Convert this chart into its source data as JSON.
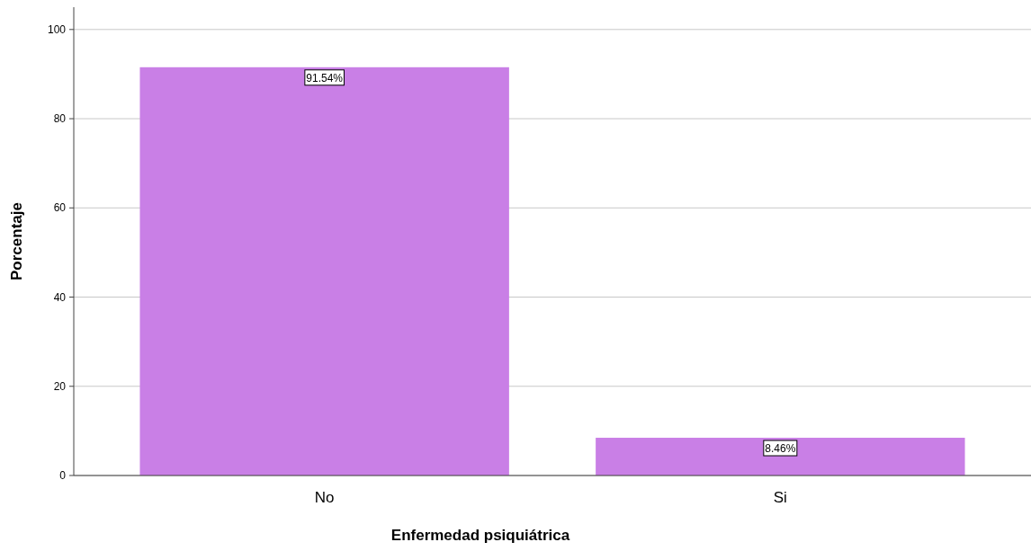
{
  "chart_data": {
    "type": "bar",
    "xlabel": "Enfermedad psiquiátrica",
    "ylabel": "Porcentaje",
    "categories": [
      "No",
      "Si"
    ],
    "values": [
      91.54,
      8.46
    ],
    "value_labels": [
      "91.54%",
      "8.46%"
    ],
    "color": "#c97fe6",
    "ylim": [
      0,
      105
    ],
    "yticks": [
      0,
      20,
      40,
      60,
      80,
      100
    ],
    "grid": "y"
  }
}
